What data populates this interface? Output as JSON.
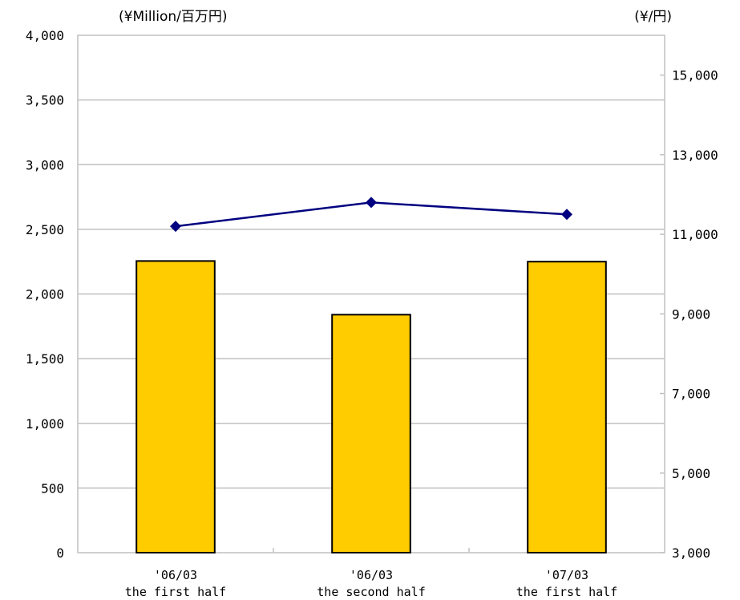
{
  "chart_data": {
    "type": "bar",
    "left_axis_unit": "(¥Million/百万円)",
    "right_axis_unit": "(¥/円)",
    "categories": [
      {
        "line1": "'06/03",
        "line2": "the first half"
      },
      {
        "line1": "'06/03",
        "line2": "the second half"
      },
      {
        "line1": "'07/03",
        "line2": "the first half"
      }
    ],
    "series": [
      {
        "type": "bar",
        "axis": "left",
        "values": [
          2255,
          1840,
          2250
        ],
        "color": "#FFCC00",
        "stroke": "#000000"
      },
      {
        "type": "line",
        "axis": "right",
        "values": [
          11200,
          11800,
          11500
        ],
        "color": "#000080"
      }
    ],
    "left_axis": {
      "ylim": [
        0,
        4000
      ],
      "ticks": [
        0,
        500,
        1000,
        1500,
        2000,
        2500,
        3000,
        3500,
        4000
      ],
      "tick_labels": [
        "0",
        "500",
        "1,000",
        "1,500",
        "2,000",
        "2,500",
        "3,000",
        "3,500",
        "4,000"
      ]
    },
    "right_axis": {
      "ylim": [
        3000,
        16000
      ],
      "ticks": [
        3000,
        5000,
        7000,
        9000,
        11000,
        13000,
        15000
      ],
      "tick_labels": [
        "3,000",
        "5,000",
        "7,000",
        "9,000",
        "11,000",
        "13,000",
        "15,000"
      ]
    },
    "grid": "horizontal",
    "grid_color": "#C0C0C0",
    "legend": "none"
  }
}
